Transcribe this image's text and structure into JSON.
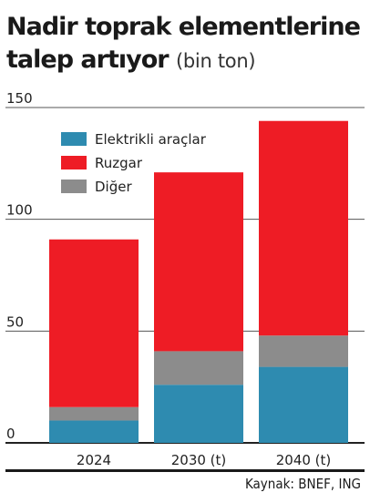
{
  "title": {
    "main_line1": "Nadir toprak elementlerine",
    "main_line2": "talep artıyor",
    "unit": "(bin ton)"
  },
  "source": "Kaynak: BNEF, ING",
  "colors": {
    "elektrikli": "#2e8bb0",
    "ruzgar": "#ee1c25",
    "diger": "#8c8c8c"
  },
  "chart_data": {
    "type": "bar",
    "stacked": true,
    "categories": [
      "2024",
      "2030 (t)",
      "2040 (t)"
    ],
    "series": [
      {
        "name": "Elektrikli araçlar",
        "values": [
          10,
          26,
          34
        ]
      },
      {
        "name": "Diğer",
        "values": [
          6,
          15,
          14
        ]
      },
      {
        "name": "Ruzgar",
        "values": [
          75,
          80,
          96
        ]
      }
    ],
    "legend_order": [
      "Elektrikli araçlar",
      "Ruzgar",
      "Diğer"
    ],
    "y_ticks": [
      0,
      50,
      100,
      150
    ],
    "ylim": [
      0,
      150
    ],
    "grid": true,
    "legend_position": "top-left"
  }
}
